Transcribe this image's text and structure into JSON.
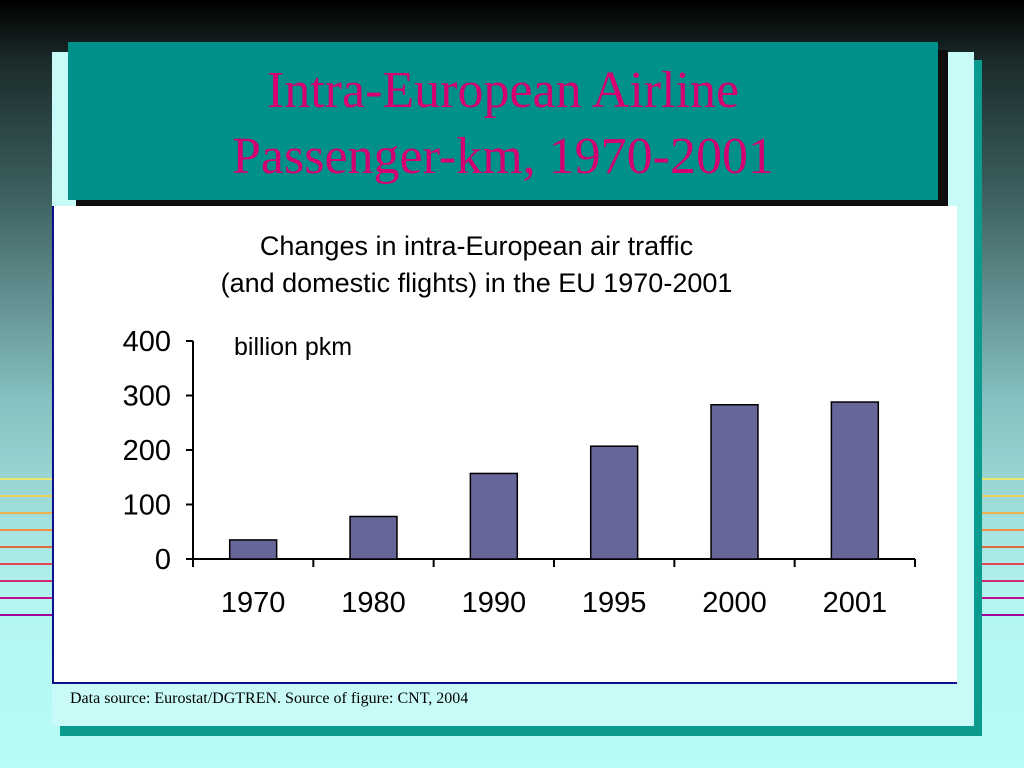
{
  "slide": {
    "title_line1": "Intra-European Airline",
    "title_line2": "Passenger-km, 1970-2001",
    "caption": "Data source:  Eurostat/DGTREN.  Source of figure:  CNT, 2004"
  },
  "colors": {
    "title_bg": "#00908a",
    "title_text": "#d4006f",
    "bar_fill": "#666699",
    "panel_bg": "#c8fbf7"
  },
  "chart_data": {
    "type": "bar",
    "title_line1": "Changes in intra-European air traffic",
    "title_line2": "(and domestic flights) in the EU 1970-2001",
    "unit_label": "billion pkm",
    "categories": [
      "1970",
      "1980",
      "1990",
      "1995",
      "2000",
      "2001"
    ],
    "values": [
      35,
      78,
      157,
      207,
      283,
      288
    ],
    "ylim": [
      0,
      400
    ],
    "yticks": [
      "0",
      "100",
      "200",
      "300",
      "400"
    ],
    "grid": false,
    "legend": "none"
  }
}
